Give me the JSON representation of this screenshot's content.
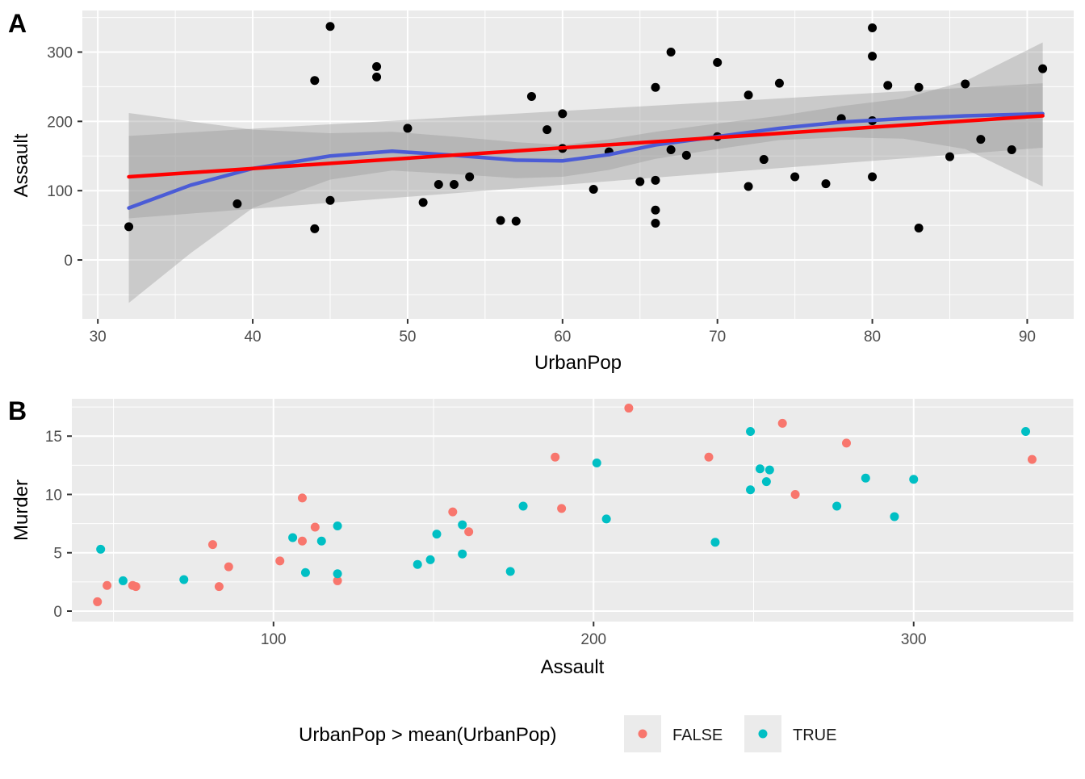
{
  "panels": [
    {
      "tag": "A"
    },
    {
      "tag": "B"
    }
  ],
  "chart_data": [
    {
      "type": "scatter",
      "panel": "A",
      "xlabel": "UrbanPop",
      "ylabel": "Assault",
      "xlim": [
        29,
        93
      ],
      "ylim": [
        -85,
        360
      ],
      "xticks": [
        30,
        40,
        50,
        60,
        70,
        80,
        90
      ],
      "yticks": [
        0,
        100,
        200,
        300
      ],
      "grid": true,
      "points_color": "#000000",
      "points": [
        [
          32,
          48
        ],
        [
          39,
          81
        ],
        [
          44,
          45
        ],
        [
          44,
          259
        ],
        [
          45,
          337
        ],
        [
          45,
          86
        ],
        [
          48,
          279
        ],
        [
          48,
          264
        ],
        [
          50,
          190
        ],
        [
          51,
          83
        ],
        [
          52,
          109
        ],
        [
          53,
          109
        ],
        [
          54,
          120
        ],
        [
          56,
          57
        ],
        [
          57,
          56
        ],
        [
          58,
          236
        ],
        [
          59,
          188
        ],
        [
          60,
          211
        ],
        [
          60,
          161
        ],
        [
          62,
          102
        ],
        [
          63,
          156
        ],
        [
          65,
          113
        ],
        [
          66,
          249
        ],
        [
          66,
          115
        ],
        [
          66,
          72
        ],
        [
          66,
          53
        ],
        [
          67,
          300
        ],
        [
          67,
          159
        ],
        [
          68,
          151
        ],
        [
          70,
          285
        ],
        [
          70,
          178
        ],
        [
          72,
          238
        ],
        [
          72,
          106
        ],
        [
          73,
          145
        ],
        [
          74,
          255
        ],
        [
          75,
          120
        ],
        [
          77,
          110
        ],
        [
          78,
          204
        ],
        [
          80,
          335
        ],
        [
          80,
          294
        ],
        [
          80,
          201
        ],
        [
          80,
          120
        ],
        [
          81,
          252
        ],
        [
          83,
          249
        ],
        [
          83,
          46
        ],
        [
          85,
          149
        ],
        [
          86,
          254
        ],
        [
          87,
          174
        ],
        [
          89,
          159
        ],
        [
          91,
          276
        ]
      ],
      "lines": [
        {
          "name": "linear fit",
          "color": "#ff0000",
          "x": [
            32,
            91
          ],
          "y": [
            120,
            208
          ],
          "band_lower": [
            60,
            162
          ],
          "band_upper": [
            179,
            255
          ]
        },
        {
          "name": "loess smooth",
          "color": "#4b5cd6",
          "x": [
            32,
            36,
            40,
            45,
            49,
            53,
            57,
            60,
            63,
            66,
            70,
            74,
            78,
            82,
            86,
            91
          ],
          "y": [
            75,
            108,
            132,
            150,
            157,
            151,
            144,
            143,
            152,
            166,
            178,
            190,
            199,
            204,
            208,
            211
          ],
          "band_lower": [
            -62,
            10,
            75,
            116,
            129,
            124,
            118,
            120,
            130,
            146,
            160,
            173,
            177,
            175,
            160,
            106
          ],
          "band_upper": [
            212,
            200,
            188,
            183,
            185,
            178,
            170,
            166,
            174,
            185,
            197,
            208,
            222,
            233,
            258,
            314
          ]
        }
      ]
    },
    {
      "type": "scatter",
      "panel": "B",
      "xlabel": "Assault",
      "ylabel": "Murder",
      "xlim": [
        37,
        350
      ],
      "ylim": [
        -0.9,
        18.2
      ],
      "xticks": [
        100,
        200,
        300
      ],
      "yticks": [
        0,
        5,
        10,
        15
      ],
      "grid": true,
      "legend": {
        "title": "UrbanPop > mean(UrbanPop)",
        "position": "bottom",
        "entries": [
          {
            "label": "FALSE",
            "color": "#f8766d"
          },
          {
            "label": "TRUE",
            "color": "#00bfc4"
          }
        ]
      },
      "series": [
        {
          "name": "FALSE",
          "color": "#f8766d",
          "points": [
            [
              45,
              0.8
            ],
            [
              48,
              2.2
            ],
            [
              56,
              2.2
            ],
            [
              57,
              2.1
            ],
            [
              81,
              5.7
            ],
            [
              83,
              2.1
            ],
            [
              86,
              3.8
            ],
            [
              102,
              4.3
            ],
            [
              109,
              6.0
            ],
            [
              109,
              9.7
            ],
            [
              113,
              7.2
            ],
            [
              120,
              2.6
            ],
            [
              156,
              8.5
            ],
            [
              161,
              6.8
            ],
            [
              188,
              13.2
            ],
            [
              190,
              8.8
            ],
            [
              211,
              17.4
            ],
            [
              236,
              13.2
            ],
            [
              259,
              16.1
            ],
            [
              263,
              10.0
            ],
            [
              279,
              14.4
            ],
            [
              337,
              13.0
            ]
          ]
        },
        {
          "name": "TRUE",
          "color": "#00bfc4",
          "points": [
            [
              46,
              5.3
            ],
            [
              53,
              2.6
            ],
            [
              72,
              2.7
            ],
            [
              106,
              6.3
            ],
            [
              110,
              3.3
            ],
            [
              115,
              6.0
            ],
            [
              120,
              7.3
            ],
            [
              120,
              3.2
            ],
            [
              145,
              4.0
            ],
            [
              149,
              4.4
            ],
            [
              151,
              6.6
            ],
            [
              159,
              7.4
            ],
            [
              159,
              4.9
            ],
            [
              174,
              3.4
            ],
            [
              178,
              9.0
            ],
            [
              201,
              12.7
            ],
            [
              204,
              7.9
            ],
            [
              238,
              5.9
            ],
            [
              249,
              15.4
            ],
            [
              249,
              10.4
            ],
            [
              252,
              12.2
            ],
            [
              254,
              11.1
            ],
            [
              255,
              12.1
            ],
            [
              276,
              9.0
            ],
            [
              285,
              11.4
            ],
            [
              294,
              8.1
            ],
            [
              300,
              11.3
            ],
            [
              335,
              15.4
            ]
          ]
        }
      ]
    }
  ]
}
